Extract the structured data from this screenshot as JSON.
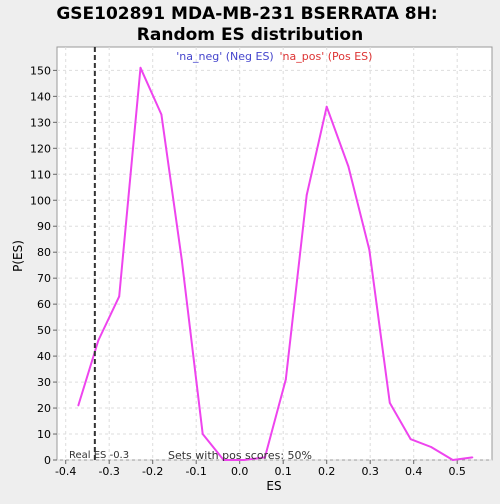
{
  "chart_data": {
    "type": "line",
    "title_line1": "GSE102891 MDA-MB-231 BSERRATA 8H:",
    "title_line2": "Random ES distribution",
    "xlabel": "ES",
    "ylabel": "P(ES)",
    "xlim": [
      -0.42,
      0.58
    ],
    "ylim": [
      0,
      159
    ],
    "x_ticks": [
      -0.4,
      -0.3,
      -0.2,
      -0.1,
      0.0,
      0.1,
      0.2,
      0.3,
      0.4,
      0.5
    ],
    "x_tick_labels": [
      "-0.4",
      "-0.3",
      "-0.2",
      "-0.1",
      "0.0",
      "0.1",
      "0.2",
      "0.3",
      "0.4",
      "0.5"
    ],
    "y_ticks": [
      0,
      10,
      20,
      30,
      40,
      50,
      60,
      70,
      80,
      90,
      100,
      110,
      120,
      130,
      140,
      150
    ],
    "grid": true,
    "legend": {
      "placement": "top",
      "neg_label": "'na_neg' (Neg ES)",
      "pos_label": "'na_pos' (Pos ES)",
      "neg_color": "#4444cc",
      "pos_color": "#dd3333"
    },
    "line_color": "#ee44ee",
    "series": [
      {
        "x": [
          -0.371,
          -0.325,
          -0.277,
          -0.228,
          -0.18,
          -0.133,
          -0.085,
          -0.037,
          0.01,
          0.058,
          0.106,
          0.154,
          0.2,
          0.25,
          0.298,
          0.345,
          0.393,
          0.44,
          0.49,
          0.535
        ],
        "values": [
          21,
          46,
          63,
          151,
          133,
          77,
          10,
          0,
          0,
          1,
          31,
          102,
          136,
          113,
          81,
          22,
          8,
          5,
          0,
          1
        ]
      }
    ],
    "real_es": {
      "x": -0.333,
      "color": "#333333",
      "label": "Real ES -0.3"
    },
    "annotation": "Sets with pos scores: 50%"
  }
}
